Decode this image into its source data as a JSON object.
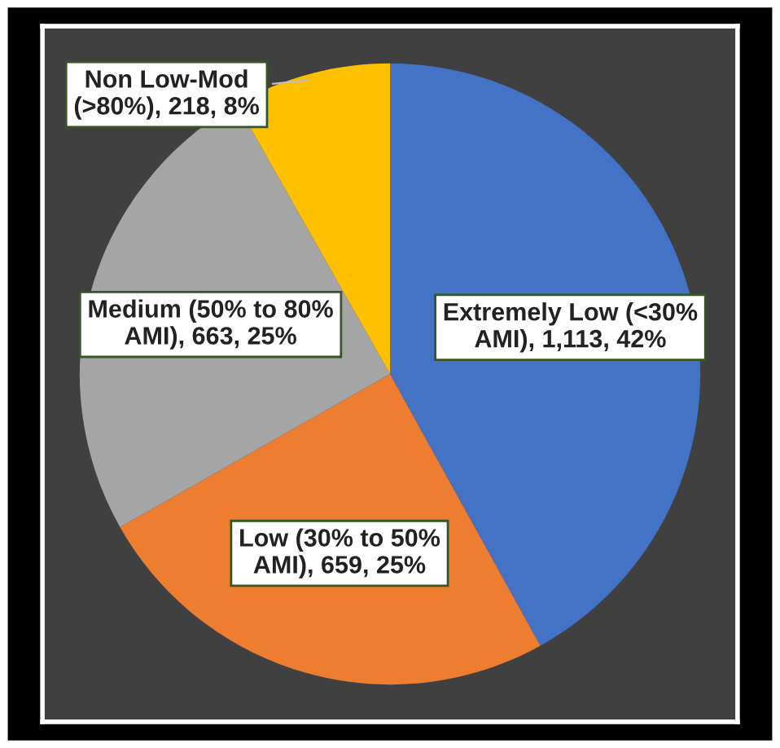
{
  "chart_data": {
    "type": "pie",
    "categories": [
      "Extremely Low (<30% AMI)",
      "Low (30% to 50% AMI)",
      "Medium (50% to 80% AMI)",
      "Non Low-Mod (>80%)"
    ],
    "values": [
      1113,
      659,
      663,
      218
    ],
    "value_labels": [
      "1,113, 42%",
      "659, 25%",
      "663, 25%",
      "218, 8%"
    ],
    "colors": [
      "#4472c4",
      "#ed7d31",
      "#a5a5a5",
      "#ffc000"
    ],
    "legend": false
  }
}
